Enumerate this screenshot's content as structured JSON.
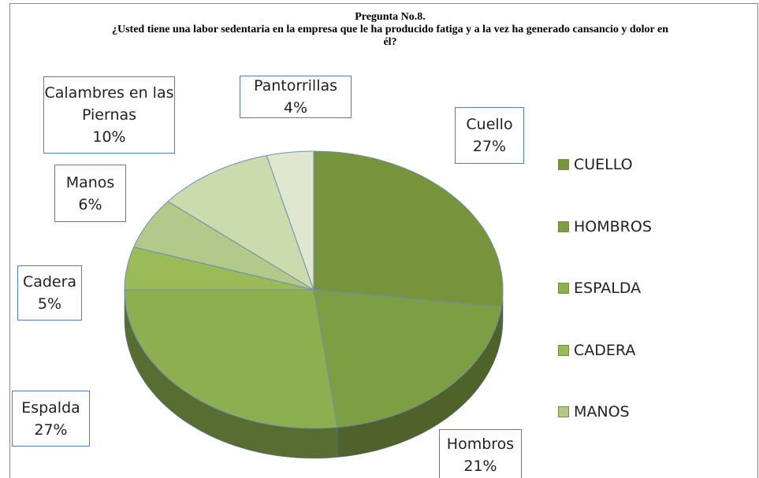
{
  "chart_data": {
    "type": "pie",
    "title": "Pregunta No.8.",
    "subtitle": "¿Usted tiene una labor sedentaria en la empresa que le ha producido fatiga  y a la vez  ha generado cansancio y dolor  en él?",
    "categories": [
      "Cuello",
      "Hombros",
      "Espalda",
      "Cadera",
      "Manos",
      "Calambres en las Piernas",
      "Pantorrillas"
    ],
    "values": [
      27,
      21,
      27,
      5,
      6,
      10,
      4
    ],
    "value_labels": [
      "27%",
      "21%",
      "27%",
      "5%",
      "6%",
      "10%",
      "4%"
    ],
    "colors": [
      "#77933c",
      "#7e9e42",
      "#8daf4f",
      "#9bbb59",
      "#b3c98a",
      "#cbdbae",
      "#dfe8cf"
    ],
    "legend": [
      "CUELLO",
      "HOMBROS",
      "ESPALDA",
      "CADERA",
      "MANOS"
    ],
    "three_d": true
  }
}
